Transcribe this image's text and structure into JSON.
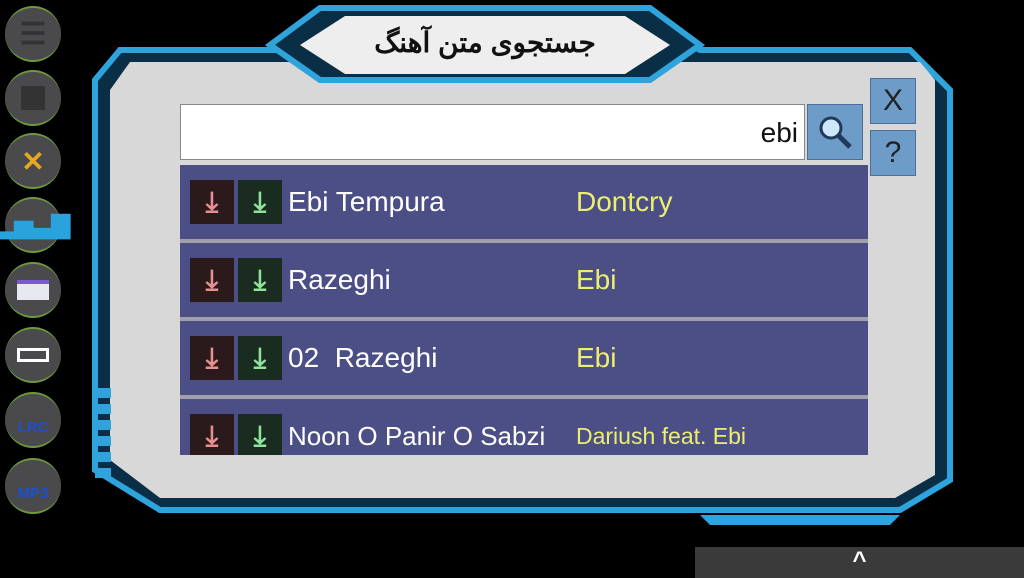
{
  "title": "جستجوی متن آهنگ",
  "search": {
    "value": "ebi"
  },
  "buttons": {
    "close": "X",
    "help": "?",
    "expand": "^"
  },
  "sidebar": [
    {
      "icon": "menu-icon"
    },
    {
      "icon": "stop-icon"
    },
    {
      "icon": "sparkle-icon"
    },
    {
      "icon": "equalizer-icon"
    },
    {
      "icon": "radio-icon"
    },
    {
      "icon": "screen-icon"
    },
    {
      "icon": "lrc-search-icon",
      "label": "LRC"
    },
    {
      "icon": "mp3-search-icon",
      "label": "MP3"
    }
  ],
  "results": [
    {
      "title": "Ebi Tempura",
      "artist": "Dontcry"
    },
    {
      "title": "Razeghi",
      "artist": "Ebi"
    },
    {
      "title": "02  Razeghi",
      "artist": "Ebi"
    },
    {
      "title": "Noon O Panir O Sabzi",
      "artist": "Dariush feat. Ebi"
    }
  ],
  "colors": {
    "frame": "#2ea3dc",
    "panel": "#d8d8d8",
    "row": "#4b4f86",
    "artist": "#ecee70"
  }
}
